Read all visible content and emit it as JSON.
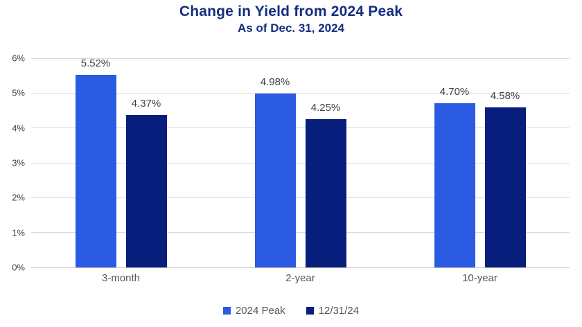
{
  "title": "Change in Yield from 2024 Peak",
  "subtitle": "As of Dec. 31, 2024",
  "colors": {
    "title_text": "#132e7f",
    "peak_bar": "#2b5be2",
    "dec_bar": "#081e7d",
    "gridline": "#dadada",
    "value_label_text": "#404040",
    "axis_text": "#575757"
  },
  "chart_data": {
    "type": "bar",
    "title": "Change in Yield from 2024 Peak",
    "subtitle": "As of Dec. 31, 2024",
    "categories": [
      "3-month",
      "2-year",
      "10-year"
    ],
    "series": [
      {
        "name": "2024 Peak",
        "color": "#2b5be2",
        "values": [
          5.52,
          4.98,
          4.7
        ],
        "labels": [
          "5.52%",
          "4.98%",
          "4.70%"
        ]
      },
      {
        "name": "12/31/24",
        "color": "#081e7d",
        "values": [
          4.37,
          4.25,
          4.58
        ],
        "labels": [
          "4.37%",
          "4.25%",
          "4.58%"
        ]
      }
    ],
    "xlabel": "",
    "ylabel": "",
    "ylim": [
      0,
      6
    ],
    "y_ticks": [
      "0%",
      "1%",
      "2%",
      "3%",
      "4%",
      "5%",
      "6%"
    ],
    "y_tick_values": [
      0,
      1,
      2,
      3,
      4,
      5,
      6
    ],
    "grid": true,
    "legend_position": "bottom"
  }
}
